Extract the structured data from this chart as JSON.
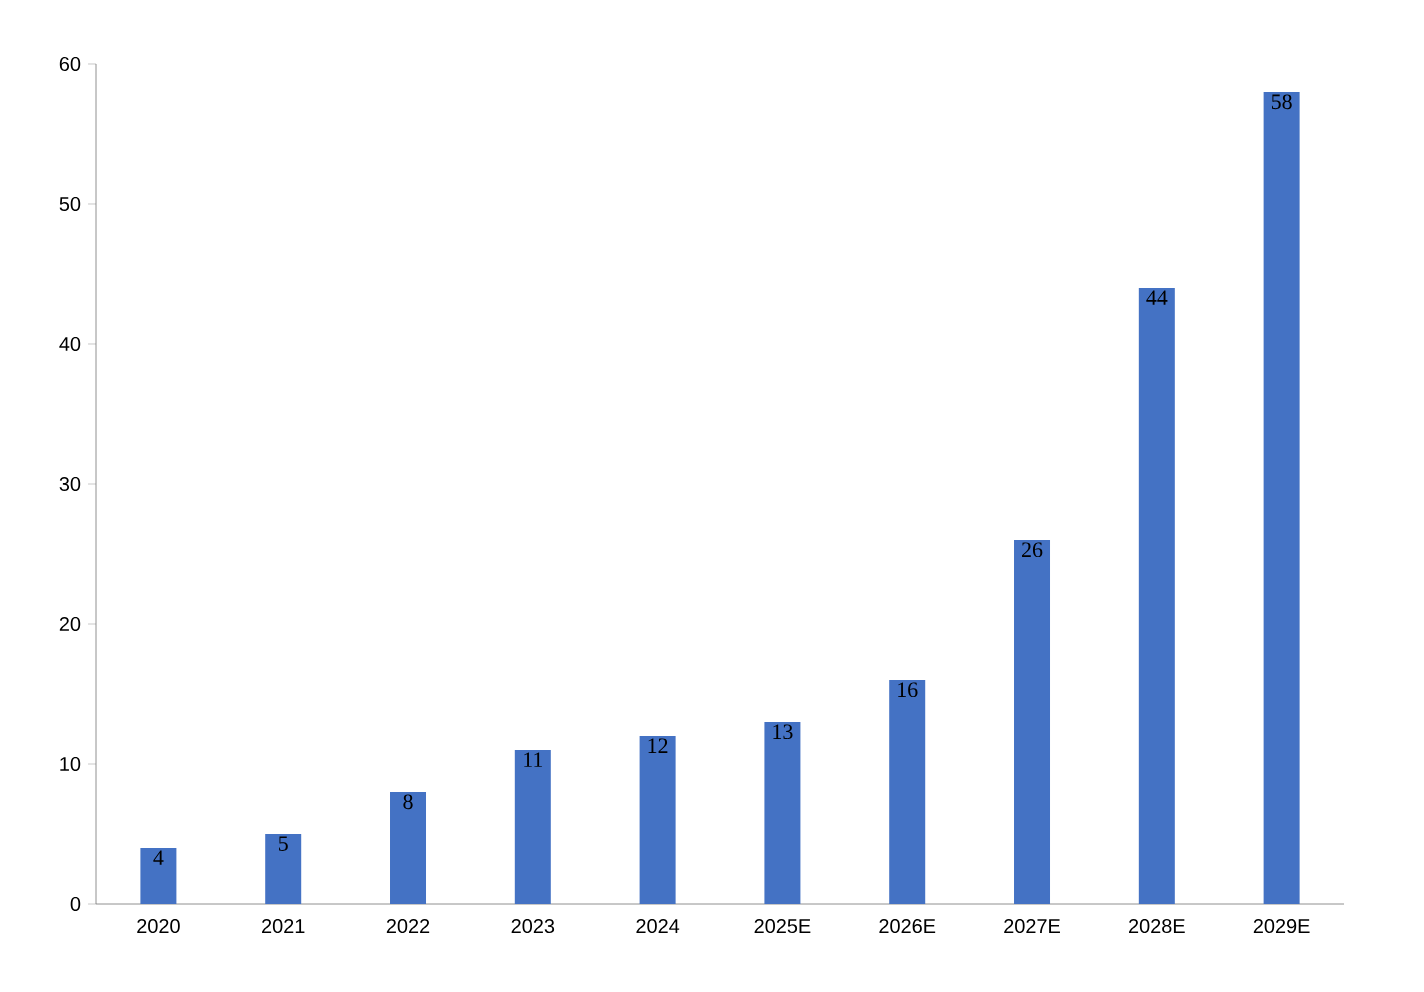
{
  "chart_data": {
    "type": "bar",
    "categories": [
      "2020",
      "2021",
      "2022",
      "2023",
      "2024",
      "2025E",
      "2026E",
      "2027E",
      "2028E",
      "2029E"
    ],
    "values": [
      4,
      5,
      8,
      11,
      12,
      13,
      16,
      26,
      44,
      58
    ],
    "color": "#4472c4",
    "ylim": [
      0,
      60
    ],
    "yticks": [
      0,
      10,
      20,
      30,
      40,
      50,
      60
    ],
    "data_labels": true
  }
}
